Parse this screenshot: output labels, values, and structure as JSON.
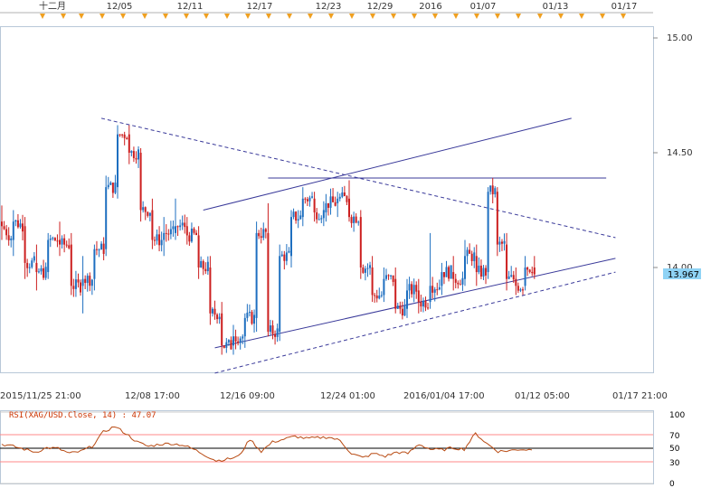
{
  "top_axis": {
    "labels": [
      "十二月",
      "12/05",
      "12/11",
      "12/17",
      "12/23",
      "12/29",
      "2016",
      "01/07",
      "01/13",
      "01/17"
    ]
  },
  "bottom_axis": {
    "labels": [
      "2015/11/25 21:00",
      "12/08 17:00",
      "12/16 09:00",
      "12/24 01:00",
      "2016/01/04 17:00",
      "01/12 05:00",
      "01/17 21:00"
    ]
  },
  "rsi": {
    "title": "RSI(XAG/USD.Close, 14) : 47.07",
    "levels": [
      "100",
      "70",
      "50",
      "30",
      "0"
    ],
    "level_colors": {
      "70": "#ff8888",
      "30": "#ff8888",
      "50": "#000000",
      "100": "#cccccc",
      "0": "#cccccc"
    }
  },
  "last_price": "13.967",
  "colors": {
    "bull": "#1e6fc0",
    "bear": "#cc1f1f",
    "trendline": "#3a3a9a",
    "rsi_line": "#b84a12",
    "price_tag_bg": "#8fd3f5",
    "marker": "#f0a020"
  },
  "chart_data": {
    "type": "candlestick",
    "instrument": "XAG/USD",
    "y_ticks": [
      "15.00",
      "14.50",
      "14.00"
    ],
    "ylim": [
      13.5,
      15.05
    ],
    "grid": false,
    "x_index_range": [
      0,
      235
    ],
    "bars": [
      {
        "i": 0,
        "o": 14.2,
        "h": 14.27,
        "l": 14.12,
        "c": 14.18
      },
      {
        "i": 5,
        "o": 14.12,
        "h": 14.25,
        "l": 14.05,
        "c": 14.2
      },
      {
        "i": 10,
        "o": 14.18,
        "h": 14.22,
        "l": 13.95,
        "c": 14.02
      },
      {
        "i": 15,
        "o": 14.02,
        "h": 14.1,
        "l": 13.9,
        "c": 13.98
      },
      {
        "i": 20,
        "o": 13.98,
        "h": 14.15,
        "l": 13.95,
        "c": 14.12
      },
      {
        "i": 25,
        "o": 14.12,
        "h": 14.2,
        "l": 14.05,
        "c": 14.1
      },
      {
        "i": 30,
        "o": 14.1,
        "h": 14.15,
        "l": 13.88,
        "c": 13.92
      },
      {
        "i": 35,
        "o": 13.92,
        "h": 14.05,
        "l": 13.8,
        "c": 13.95
      },
      {
        "i": 40,
        "o": 13.95,
        "h": 14.1,
        "l": 13.9,
        "c": 14.08
      },
      {
        "i": 45,
        "o": 14.08,
        "h": 14.4,
        "l": 14.05,
        "c": 14.35
      },
      {
        "i": 50,
        "o": 14.35,
        "h": 14.62,
        "l": 14.3,
        "c": 14.58
      },
      {
        "i": 55,
        "o": 14.58,
        "h": 14.62,
        "l": 14.45,
        "c": 14.5
      },
      {
        "i": 60,
        "o": 14.5,
        "h": 14.52,
        "l": 14.2,
        "c": 14.25
      },
      {
        "i": 65,
        "o": 14.25,
        "h": 14.3,
        "l": 14.08,
        "c": 14.12
      },
      {
        "i": 70,
        "o": 14.12,
        "h": 14.22,
        "l": 14.05,
        "c": 14.15
      },
      {
        "i": 75,
        "o": 14.15,
        "h": 14.3,
        "l": 14.12,
        "c": 14.18
      },
      {
        "i": 80,
        "o": 14.18,
        "h": 14.22,
        "l": 14.1,
        "c": 14.14
      },
      {
        "i": 85,
        "o": 14.14,
        "h": 14.18,
        "l": 13.95,
        "c": 14.0
      },
      {
        "i": 90,
        "o": 14.0,
        "h": 14.05,
        "l": 13.75,
        "c": 13.8
      },
      {
        "i": 95,
        "o": 13.8,
        "h": 13.85,
        "l": 13.62,
        "c": 13.66
      },
      {
        "i": 100,
        "o": 13.66,
        "h": 13.75,
        "l": 13.62,
        "c": 13.7
      },
      {
        "i": 105,
        "o": 13.7,
        "h": 13.8,
        "l": 13.65,
        "c": 13.78
      },
      {
        "i": 110,
        "o": 13.78,
        "h": 14.2,
        "l": 13.72,
        "c": 14.15
      },
      {
        "i": 115,
        "o": 14.15,
        "h": 14.28,
        "l": 13.7,
        "c": 13.72
      },
      {
        "i": 120,
        "o": 13.72,
        "h": 14.1,
        "l": 13.68,
        "c": 14.05
      },
      {
        "i": 125,
        "o": 14.05,
        "h": 14.25,
        "l": 14.0,
        "c": 14.22
      },
      {
        "i": 130,
        "o": 14.22,
        "h": 14.35,
        "l": 14.18,
        "c": 14.3
      },
      {
        "i": 135,
        "o": 14.3,
        "h": 14.33,
        "l": 14.2,
        "c": 14.24
      },
      {
        "i": 140,
        "o": 14.24,
        "h": 14.32,
        "l": 14.2,
        "c": 14.28
      },
      {
        "i": 145,
        "o": 14.28,
        "h": 14.33,
        "l": 14.22,
        "c": 14.3
      },
      {
        "i": 150,
        "o": 14.3,
        "h": 14.38,
        "l": 14.2,
        "c": 14.22
      },
      {
        "i": 155,
        "o": 14.22,
        "h": 14.25,
        "l": 13.95,
        "c": 14.0
      },
      {
        "i": 160,
        "o": 14.0,
        "h": 14.05,
        "l": 13.85,
        "c": 13.88
      },
      {
        "i": 165,
        "o": 13.88,
        "h": 14.0,
        "l": 13.85,
        "c": 13.95
      },
      {
        "i": 170,
        "o": 13.95,
        "h": 14.0,
        "l": 13.8,
        "c": 13.82
      },
      {
        "i": 175,
        "o": 13.82,
        "h": 13.95,
        "l": 13.78,
        "c": 13.9
      },
      {
        "i": 180,
        "o": 13.9,
        "h": 13.95,
        "l": 13.8,
        "c": 13.85
      },
      {
        "i": 185,
        "o": 13.85,
        "h": 14.15,
        "l": 13.82,
        "c": 13.92
      },
      {
        "i": 190,
        "o": 13.92,
        "h": 14.02,
        "l": 13.88,
        "c": 13.98
      },
      {
        "i": 195,
        "o": 13.98,
        "h": 14.05,
        "l": 13.9,
        "c": 13.95
      },
      {
        "i": 200,
        "o": 13.95,
        "h": 14.12,
        "l": 13.92,
        "c": 14.05
      },
      {
        "i": 205,
        "o": 14.05,
        "h": 14.1,
        "l": 13.92,
        "c": 13.98
      },
      {
        "i": 210,
        "o": 13.98,
        "h": 14.35,
        "l": 13.95,
        "c": 14.33
      },
      {
        "i": 214,
        "o": 14.33,
        "h": 14.35,
        "l": 14.05,
        "c": 14.1
      },
      {
        "i": 218,
        "o": 14.1,
        "h": 14.15,
        "l": 13.9,
        "c": 13.95
      },
      {
        "i": 222,
        "o": 13.95,
        "h": 14.0,
        "l": 13.88,
        "c": 13.92
      },
      {
        "i": 226,
        "o": 13.92,
        "h": 14.05,
        "l": 13.9,
        "c": 14.0
      },
      {
        "i": 230,
        "o": 14.0,
        "h": 14.05,
        "l": 13.95,
        "c": 13.97
      }
    ],
    "rsi_values": [
      55,
      52,
      48,
      44,
      50,
      49,
      42,
      45,
      52,
      72,
      80,
      70,
      58,
      52,
      55,
      56,
      54,
      48,
      40,
      32,
      34,
      38,
      62,
      45,
      58,
      62,
      66,
      63,
      64,
      65,
      60,
      42,
      36,
      42,
      38,
      44,
      42,
      55,
      48,
      47,
      50,
      48,
      70,
      56,
      45,
      46,
      48,
      47
    ],
    "trendlines": [
      {
        "style": "solid",
        "from": [
          87,
          14.25
        ],
        "to": [
          246,
          14.65
        ]
      },
      {
        "style": "solid",
        "from": [
          115,
          14.39
        ],
        "to": [
          261,
          14.39
        ]
      },
      {
        "style": "dashed",
        "from": [
          43,
          14.65
        ],
        "to": [
          265,
          14.13
        ]
      },
      {
        "style": "solid",
        "from": [
          92,
          13.65
        ],
        "to": [
          265,
          14.04
        ]
      },
      {
        "style": "dashed",
        "from": [
          92,
          13.54
        ],
        "to": [
          265,
          13.98
        ]
      }
    ]
  }
}
